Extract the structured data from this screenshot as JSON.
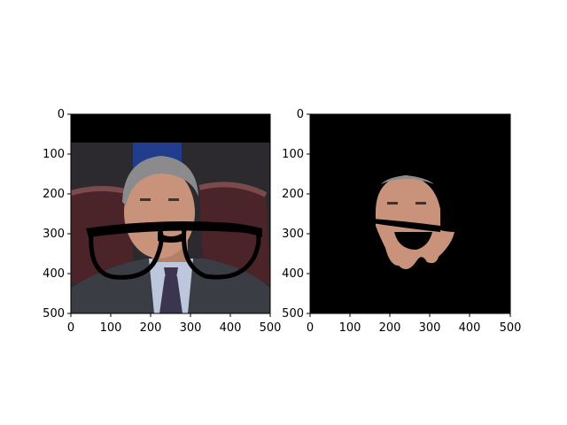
{
  "figure": {
    "background": "#ffffff",
    "panels": [
      {
        "id": "left",
        "description_kind": "photo-with-glasses-overlay",
        "x_ticks": [
          "0",
          "100",
          "200",
          "300",
          "400",
          "500"
        ],
        "y_ticks": [
          "0",
          "100",
          "200",
          "300",
          "400",
          "500"
        ]
      },
      {
        "id": "right",
        "description_kind": "masked-face-on-black",
        "x_ticks": [
          "0",
          "100",
          "200",
          "300",
          "400",
          "500"
        ],
        "y_ticks": [
          "0",
          "100",
          "200",
          "300",
          "400",
          "500"
        ]
      }
    ],
    "colors": {
      "axis_frame": "#000000",
      "mask_background": "#000000",
      "glasses": "#000000",
      "suit": "#3a3d44",
      "shirt": "#bcc6dd",
      "tie": "#3b3550",
      "hair": "#8b8b8d",
      "skin": "#c9937b",
      "chair": "#4b2429",
      "wall": "#2c2a2e",
      "blue_patch": "#1f3d8c"
    }
  }
}
